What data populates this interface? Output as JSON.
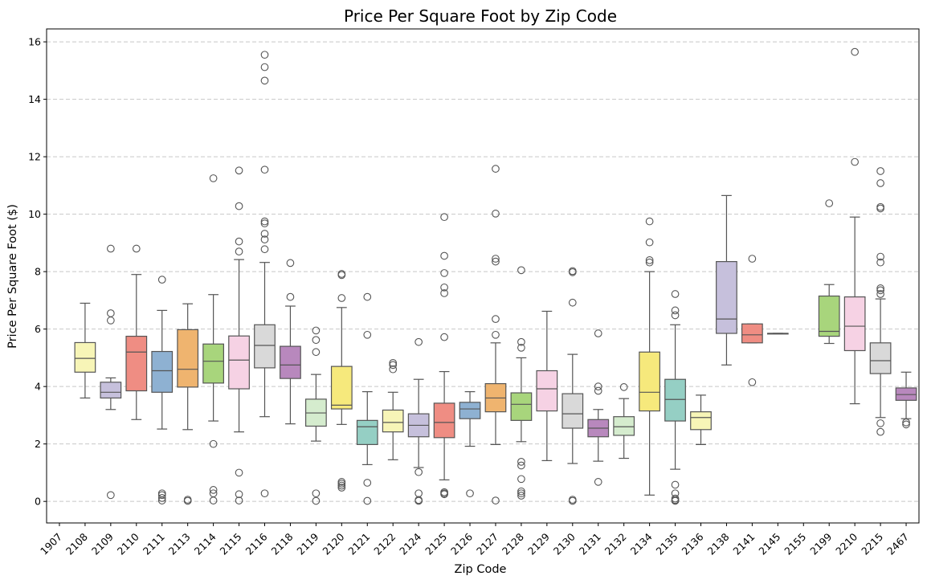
{
  "chart_data": {
    "type": "box",
    "title": "Price Per Square Foot by Zip Code",
    "xlabel": "Zip Code",
    "ylabel": "Price Per Square Foot ($)",
    "ylim": [
      -0.75,
      16.45
    ],
    "yticks": [
      0,
      2,
      4,
      6,
      8,
      10,
      12,
      14,
      16
    ],
    "grid": "y, dashed",
    "legend": "none",
    "boxes": [
      {
        "zip": "1907",
        "color": null,
        "q1": null,
        "median": null,
        "q3": null,
        "wlo": null,
        "whi": null,
        "outliers": []
      },
      {
        "zip": "2108",
        "color": "#f7f5b7",
        "q1": 4.5,
        "median": 4.98,
        "q3": 5.53,
        "wlo": 3.6,
        "whi": 6.9,
        "outliers": []
      },
      {
        "zip": "2109",
        "color": "#c6c0dc",
        "q1": 3.6,
        "median": 3.8,
        "q3": 4.15,
        "wlo": 3.2,
        "whi": 4.3,
        "outliers": [
          0.22,
          6.3,
          6.55,
          8.8
        ]
      },
      {
        "zip": "2110",
        "color": "#ef8d83",
        "q1": 3.85,
        "median": 5.2,
        "q3": 5.75,
        "wlo": 2.85,
        "whi": 7.9,
        "outliers": [
          8.8
        ]
      },
      {
        "zip": "2111",
        "color": "#8eb1d2",
        "q1": 3.8,
        "median": 4.55,
        "q3": 5.22,
        "wlo": 2.52,
        "whi": 6.65,
        "outliers": [
          0.03,
          0.12,
          0.22,
          0.28,
          7.72
        ]
      },
      {
        "zip": "2113",
        "color": "#efb46f",
        "q1": 3.98,
        "median": 4.6,
        "q3": 5.98,
        "wlo": 2.5,
        "whi": 6.88,
        "outliers": [
          0.02,
          0.06
        ]
      },
      {
        "zip": "2114",
        "color": "#a8d57c",
        "q1": 4.12,
        "median": 4.88,
        "q3": 5.48,
        "wlo": 2.8,
        "whi": 7.2,
        "outliers": [
          0.03,
          0.28,
          0.4,
          2.0,
          11.25
        ]
      },
      {
        "zip": "2115",
        "color": "#f6d2e4",
        "q1": 3.92,
        "median": 4.92,
        "q3": 5.76,
        "wlo": 2.42,
        "whi": 8.42,
        "outliers": [
          0.03,
          0.25,
          1.0,
          8.7,
          9.05,
          10.28,
          11.52
        ]
      },
      {
        "zip": "2116",
        "color": "#d9d9d9",
        "q1": 4.65,
        "median": 5.43,
        "q3": 6.15,
        "wlo": 2.95,
        "whi": 8.32,
        "outliers": [
          0.28,
          8.78,
          9.12,
          9.32,
          9.68,
          9.75,
          11.55,
          14.65,
          15.12,
          15.55
        ]
      },
      {
        "zip": "2118",
        "color": "#b888bd",
        "q1": 4.28,
        "median": 4.75,
        "q3": 5.4,
        "wlo": 2.7,
        "whi": 6.8,
        "outliers": [
          7.12,
          8.3
        ]
      },
      {
        "zip": "2119",
        "color": "#d5ecce",
        "q1": 2.62,
        "median": 3.08,
        "q3": 3.56,
        "wlo": 2.1,
        "whi": 4.42,
        "outliers": [
          0.02,
          0.28,
          5.2,
          5.62,
          5.95
        ]
      },
      {
        "zip": "2120",
        "color": "#f6e97c",
        "q1": 3.22,
        "median": 3.35,
        "q3": 4.7,
        "wlo": 2.68,
        "whi": 6.75,
        "outliers": [
          0.48,
          0.55,
          0.62,
          0.68,
          7.08,
          7.88,
          7.92
        ]
      },
      {
        "zip": "2121",
        "color": "#95cfc4",
        "q1": 1.98,
        "median": 2.6,
        "q3": 2.82,
        "wlo": 1.28,
        "whi": 3.82,
        "outliers": [
          0.02,
          0.65,
          5.8,
          7.12
        ]
      },
      {
        "zip": "2122",
        "color": "#f7f5b7",
        "q1": 2.42,
        "median": 2.75,
        "q3": 3.18,
        "wlo": 1.45,
        "whi": 3.8,
        "outliers": [
          4.6,
          4.75,
          4.82
        ]
      },
      {
        "zip": "2124",
        "color": "#c6c0dc",
        "q1": 2.25,
        "median": 2.65,
        "q3": 3.05,
        "wlo": 1.18,
        "whi": 4.25,
        "outliers": [
          0.02,
          0.05,
          0.28,
          1.02,
          5.55
        ]
      },
      {
        "zip": "2125",
        "color": "#ef8d83",
        "q1": 2.22,
        "median": 2.75,
        "q3": 3.42,
        "wlo": 0.75,
        "whi": 4.52,
        "outliers": [
          0.25,
          0.28,
          0.32,
          5.72,
          7.25,
          7.45,
          7.95,
          8.55,
          9.9
        ]
      },
      {
        "zip": "2126",
        "color": "#8eb1d2",
        "q1": 2.88,
        "median": 3.22,
        "q3": 3.45,
        "wlo": 1.92,
        "whi": 3.82,
        "outliers": [
          0.28
        ]
      },
      {
        "zip": "2127",
        "color": "#efb46f",
        "q1": 3.12,
        "median": 3.6,
        "q3": 4.1,
        "wlo": 1.98,
        "whi": 5.52,
        "outliers": [
          0.03,
          5.8,
          6.35,
          8.35,
          8.45,
          10.02,
          11.58
        ]
      },
      {
        "zip": "2128",
        "color": "#a8d57c",
        "q1": 2.82,
        "median": 3.38,
        "q3": 3.78,
        "wlo": 2.08,
        "whi": 5.0,
        "outliers": [
          0.2,
          0.28,
          0.35,
          0.78,
          1.25,
          1.38,
          5.35,
          5.55,
          8.05
        ]
      },
      {
        "zip": "2129",
        "color": "#f6d2e4",
        "q1": 3.15,
        "median": 3.92,
        "q3": 4.55,
        "wlo": 1.42,
        "whi": 6.62,
        "outliers": []
      },
      {
        "zip": "2130",
        "color": "#d9d9d9",
        "q1": 2.55,
        "median": 3.05,
        "q3": 3.75,
        "wlo": 1.32,
        "whi": 5.12,
        "outliers": [
          0.02,
          0.06,
          6.92,
          7.98,
          8.02
        ]
      },
      {
        "zip": "2131",
        "color": "#b888bd",
        "q1": 2.25,
        "median": 2.55,
        "q3": 2.85,
        "wlo": 1.4,
        "whi": 3.2,
        "outliers": [
          0.68,
          3.85,
          4.0,
          5.85
        ]
      },
      {
        "zip": "2132",
        "color": "#d5ecce",
        "q1": 2.3,
        "median": 2.6,
        "q3": 2.95,
        "wlo": 1.5,
        "whi": 3.58,
        "outliers": [
          3.98
        ]
      },
      {
        "zip": "2134",
        "color": "#f6e97c",
        "q1": 3.15,
        "median": 3.8,
        "q3": 5.2,
        "wlo": 0.22,
        "whi": 8.0,
        "outliers": [
          8.32,
          8.4,
          9.02,
          9.75
        ]
      },
      {
        "zip": "2135",
        "color": "#95cfc4",
        "q1": 2.8,
        "median": 3.55,
        "q3": 4.25,
        "wlo": 1.12,
        "whi": 6.15,
        "outliers": [
          0.02,
          0.05,
          0.1,
          0.28,
          0.58,
          6.48,
          6.65,
          7.22
        ]
      },
      {
        "zip": "2136",
        "color": "#f7f5b7",
        "q1": 2.5,
        "median": 2.92,
        "q3": 3.12,
        "wlo": 1.98,
        "whi": 3.7,
        "outliers": []
      },
      {
        "zip": "2138",
        "color": "#c6c0dc",
        "q1": 5.85,
        "median": 6.35,
        "q3": 8.35,
        "wlo": 4.75,
        "whi": 10.65,
        "outliers": []
      },
      {
        "zip": "2141",
        "color": "#ef8d83",
        "q1": 5.52,
        "median": 5.8,
        "q3": 6.18,
        "wlo": 5.52,
        "whi": 6.18,
        "outliers": [
          4.15,
          8.45
        ]
      },
      {
        "zip": "2145",
        "color": "#8eb1d2",
        "q1": 5.85,
        "median": 5.85,
        "q3": 5.85,
        "wlo": 5.85,
        "whi": 5.85,
        "outliers": []
      },
      {
        "zip": "2155",
        "color": null,
        "q1": null,
        "median": null,
        "q3": null,
        "wlo": null,
        "whi": null,
        "outliers": []
      },
      {
        "zip": "2199",
        "color": "#a8d57c",
        "q1": 5.75,
        "median": 5.92,
        "q3": 7.15,
        "wlo": 5.5,
        "whi": 7.55,
        "outliers": [
          10.38
        ]
      },
      {
        "zip": "2210",
        "color": "#f6d2e4",
        "q1": 5.25,
        "median": 6.1,
        "q3": 7.12,
        "wlo": 3.4,
        "whi": 9.9,
        "outliers": [
          11.82,
          15.65
        ]
      },
      {
        "zip": "2215",
        "color": "#d9d9d9",
        "q1": 4.45,
        "median": 4.9,
        "q3": 5.52,
        "wlo": 2.92,
        "whi": 7.05,
        "outliers": [
          2.42,
          2.72,
          7.22,
          7.35,
          7.42,
          8.32,
          8.52,
          10.2,
          10.25,
          11.08,
          11.5
        ]
      },
      {
        "zip": "2467",
        "color": "#b888bd",
        "q1": 3.52,
        "median": 3.72,
        "q3": 3.95,
        "wlo": 2.88,
        "whi": 4.5,
        "outliers": [
          2.68,
          2.75
        ]
      }
    ]
  }
}
